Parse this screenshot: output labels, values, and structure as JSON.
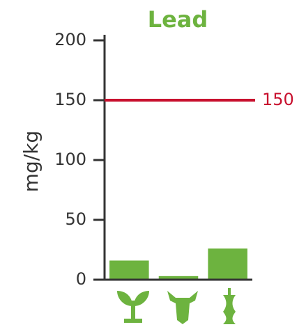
{
  "chart_data": {
    "type": "bar",
    "title": "Lead",
    "y_label": "mg/kg",
    "categories": [
      null,
      null,
      null
    ],
    "values": [
      16,
      3,
      26
    ],
    "color": "#6db33f",
    "ylim": [
      0,
      200
    ],
    "yticks": [
      0,
      50,
      100,
      150,
      200
    ],
    "reference_line": {
      "value": 150,
      "color": "#c8102e"
    }
  }
}
